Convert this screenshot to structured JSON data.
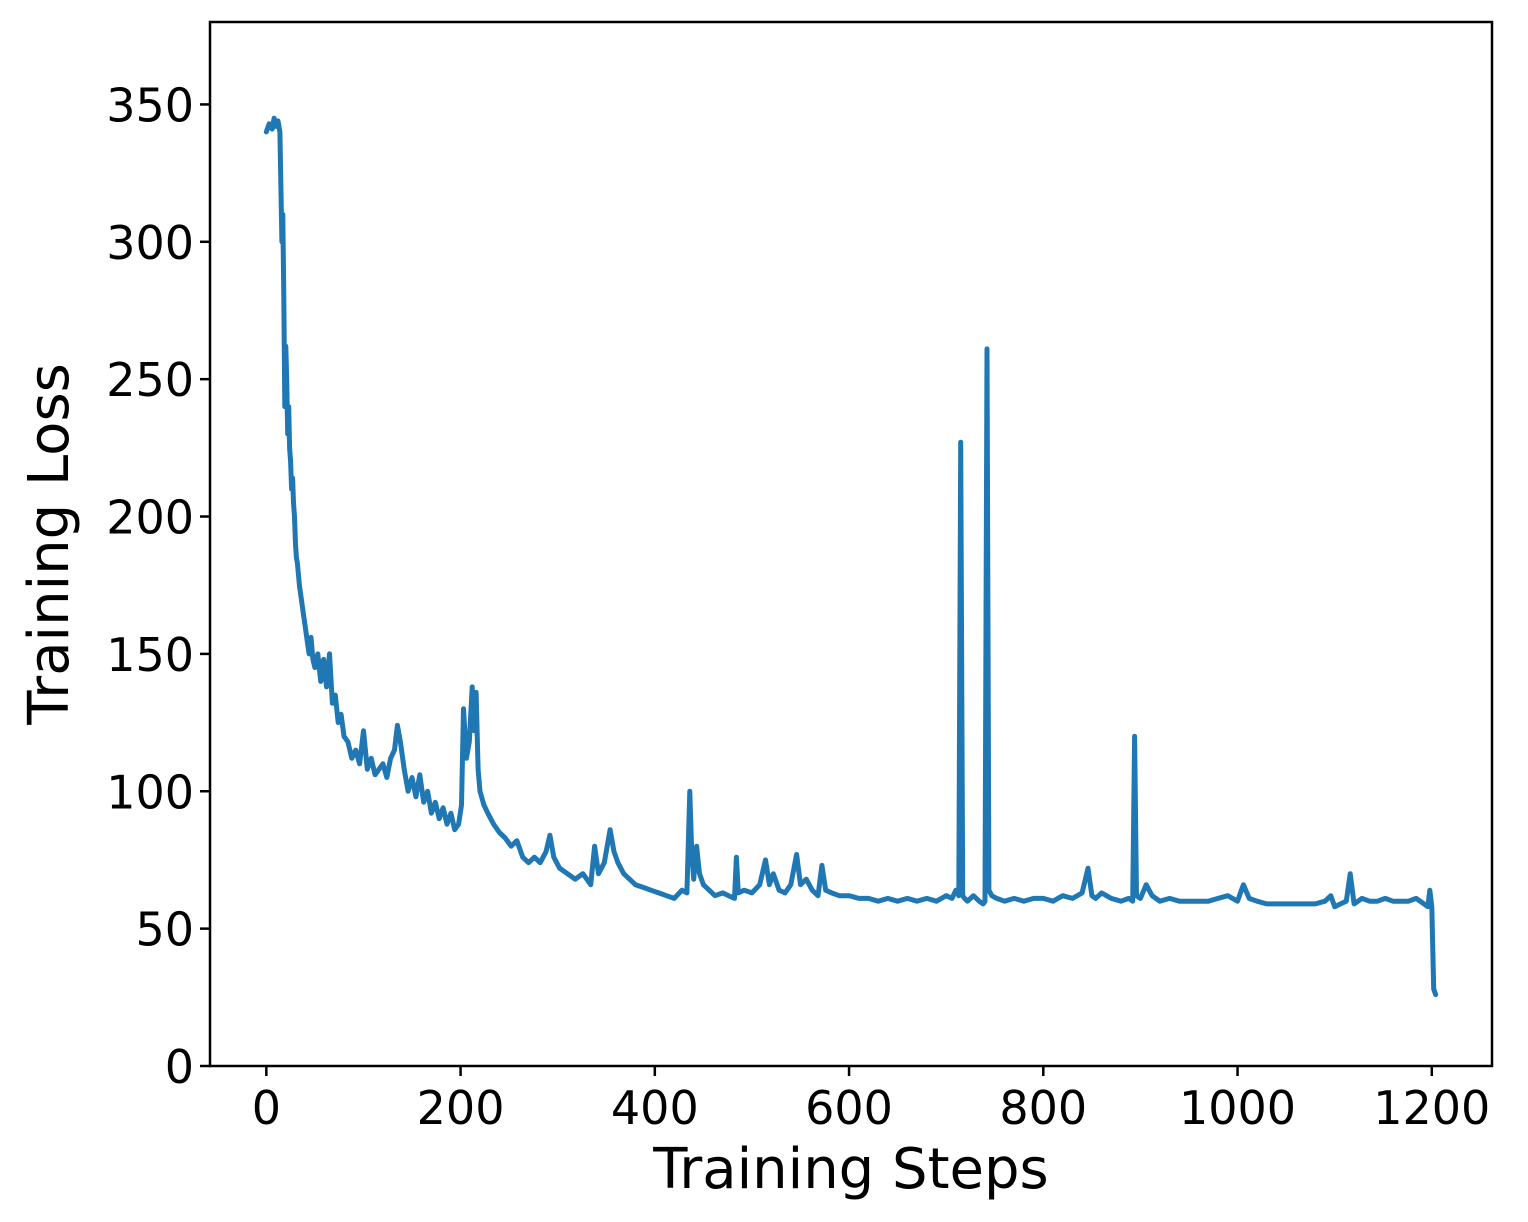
{
  "chart_data": {
    "type": "line",
    "title": "",
    "xlabel": "Training Steps",
    "ylabel": "Training Loss",
    "xlim": [
      -58,
      1262
    ],
    "ylim": [
      0,
      380
    ],
    "xticks": [
      0,
      200,
      400,
      600,
      800,
      1000,
      1200
    ],
    "yticks": [
      0,
      50,
      100,
      150,
      200,
      250,
      300,
      350
    ],
    "grid": false,
    "legend": "none",
    "series": [
      {
        "color": "#1f77b4",
        "x": [
          0,
          3,
          6,
          8,
          10,
          12,
          14,
          15,
          16,
          17,
          18,
          19,
          20,
          21,
          22,
          23,
          24,
          25,
          26,
          27,
          28,
          29,
          30,
          31,
          32,
          34,
          36,
          38,
          40,
          42,
          44,
          46,
          48,
          50,
          53,
          56,
          59,
          62,
          65,
          68,
          71,
          74,
          77,
          80,
          84,
          88,
          92,
          96,
          100,
          104,
          108,
          112,
          116,
          120,
          124,
          128,
          132,
          135,
          138,
          142,
          146,
          150,
          154,
          158,
          162,
          166,
          170,
          174,
          178,
          182,
          186,
          190,
          194,
          198,
          201,
          203,
          206,
          209,
          212,
          214,
          216,
          218,
          220,
          224,
          228,
          234,
          240,
          246,
          252,
          258,
          264,
          270,
          276,
          282,
          288,
          292,
          296,
          302,
          310,
          318,
          326,
          334,
          338,
          342,
          348,
          354,
          358,
          362,
          368,
          374,
          380,
          388,
          396,
          404,
          412,
          420,
          428,
          433,
          436,
          438,
          440,
          443,
          446,
          450,
          456,
          462,
          470,
          476,
          482,
          484,
          486,
          492,
          500,
          508,
          514,
          518,
          522,
          528,
          534,
          540,
          546,
          550,
          556,
          562,
          568,
          572,
          576,
          582,
          590,
          600,
          610,
          620,
          630,
          640,
          650,
          660,
          670,
          680,
          690,
          700,
          706,
          710,
          713,
          715,
          717,
          719,
          722,
          728,
          734,
          738,
          740,
          742,
          744,
          747,
          752,
          760,
          770,
          780,
          790,
          800,
          810,
          820,
          830,
          840,
          846,
          850,
          854,
          860,
          870,
          880,
          888,
          892,
          894,
          896,
          900,
          906,
          912,
          920,
          930,
          940,
          950,
          960,
          970,
          980,
          990,
          1000,
          1006,
          1012,
          1020,
          1030,
          1040,
          1050,
          1060,
          1070,
          1080,
          1090,
          1096,
          1100,
          1106,
          1112,
          1116,
          1120,
          1128,
          1136,
          1144,
          1152,
          1160,
          1168,
          1176,
          1184,
          1192,
          1196,
          1198,
          1200,
          1202,
          1204
        ],
        "values": [
          340,
          343,
          341,
          345,
          342,
          344,
          340,
          320,
          300,
          310,
          280,
          240,
          262,
          250,
          230,
          240,
          225,
          220,
          210,
          214,
          205,
          200,
          190,
          185,
          183,
          175,
          170,
          165,
          160,
          155,
          150,
          156,
          148,
          145,
          150,
          140,
          148,
          138,
          150,
          132,
          135,
          125,
          128,
          120,
          118,
          112,
          115,
          110,
          122,
          108,
          112,
          106,
          108,
          110,
          105,
          112,
          115,
          124,
          118,
          108,
          100,
          105,
          98,
          106,
          96,
          100,
          92,
          96,
          90,
          94,
          88,
          92,
          86,
          88,
          95,
          130,
          112,
          118,
          138,
          122,
          136,
          108,
          100,
          95,
          92,
          88,
          85,
          83,
          80,
          82,
          76,
          74,
          76,
          74,
          78,
          84,
          76,
          72,
          70,
          68,
          70,
          66,
          80,
          70,
          74,
          86,
          78,
          74,
          70,
          68,
          66,
          65,
          64,
          63,
          62,
          61,
          64,
          63,
          100,
          78,
          68,
          80,
          70,
          66,
          64,
          62,
          63,
          62,
          61,
          76,
          63,
          64,
          63,
          66,
          75,
          66,
          70,
          64,
          63,
          66,
          77,
          66,
          68,
          64,
          62,
          73,
          64,
          63,
          62,
          62,
          61,
          61,
          60,
          61,
          60,
          61,
          60,
          61,
          60,
          62,
          61,
          64,
          62,
          227,
          62,
          61,
          60,
          62,
          60,
          59,
          60,
          261,
          64,
          62,
          61,
          60,
          61,
          60,
          61,
          61,
          60,
          62,
          61,
          63,
          72,
          62,
          61,
          63,
          61,
          60,
          61,
          60,
          120,
          62,
          61,
          66,
          62,
          60,
          61,
          60,
          60,
          60,
          60,
          61,
          62,
          60,
          66,
          61,
          60,
          59,
          59,
          59,
          59,
          59,
          59,
          60,
          62,
          58,
          59,
          60,
          70,
          59,
          61,
          60,
          60,
          61,
          60,
          60,
          60,
          61,
          59,
          58,
          64,
          58,
          28,
          26
        ]
      }
    ]
  }
}
